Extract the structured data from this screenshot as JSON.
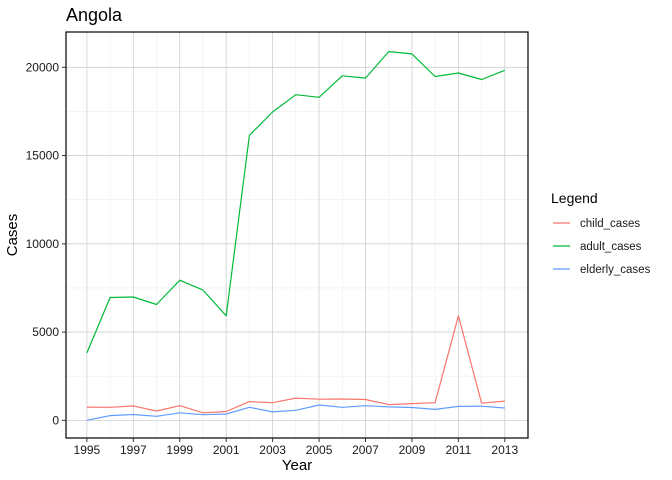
{
  "chart_data": {
    "type": "line",
    "title": "Angola",
    "xlabel": "Year",
    "ylabel": "Cases",
    "x": [
      1995,
      1996,
      1997,
      1998,
      1999,
      2000,
      2001,
      2002,
      2003,
      2004,
      2005,
      2006,
      2007,
      2008,
      2009,
      2010,
      2011,
      2012,
      2013
    ],
    "xlim": [
      1994.1,
      2014.0
    ],
    "ylim": [
      -1000,
      22000
    ],
    "xticks": [
      1995,
      1997,
      1999,
      2001,
      2003,
      2005,
      2007,
      2009,
      2011,
      2013
    ],
    "xtick_labels": [
      "1995",
      "1997",
      "1999",
      "2001",
      "2003",
      "2005",
      "2007",
      "2009",
      "2011",
      "2013"
    ],
    "yticks": [
      0,
      5000,
      10000,
      15000,
      20000
    ],
    "ytick_labels": [
      "0",
      "5000",
      "10000",
      "15000",
      "20000"
    ],
    "grid": true,
    "legend": {
      "title": "Legend",
      "position": "right"
    },
    "series": [
      {
        "name": "child_cases",
        "color": "#F8766D",
        "values": [
          750,
          740,
          820,
          530,
          830,
          430,
          500,
          1060,
          1000,
          1260,
          1200,
          1210,
          1180,
          890,
          950,
          1000,
          5920,
          970,
          1090
        ]
      },
      {
        "name": "adult_cases",
        "color": "#00BA38",
        "values": [
          3820,
          6960,
          6990,
          6560,
          7940,
          7380,
          5920,
          16140,
          17470,
          18450,
          18300,
          19520,
          19390,
          20890,
          20760,
          19480,
          19680,
          19310,
          19830
        ]
      },
      {
        "name": "elderly_cases",
        "color": "#619CFF",
        "values": [
          0,
          270,
          330,
          230,
          430,
          320,
          360,
          740,
          480,
          570,
          870,
          740,
          830,
          760,
          730,
          620,
          790,
          800,
          700
        ]
      }
    ]
  }
}
